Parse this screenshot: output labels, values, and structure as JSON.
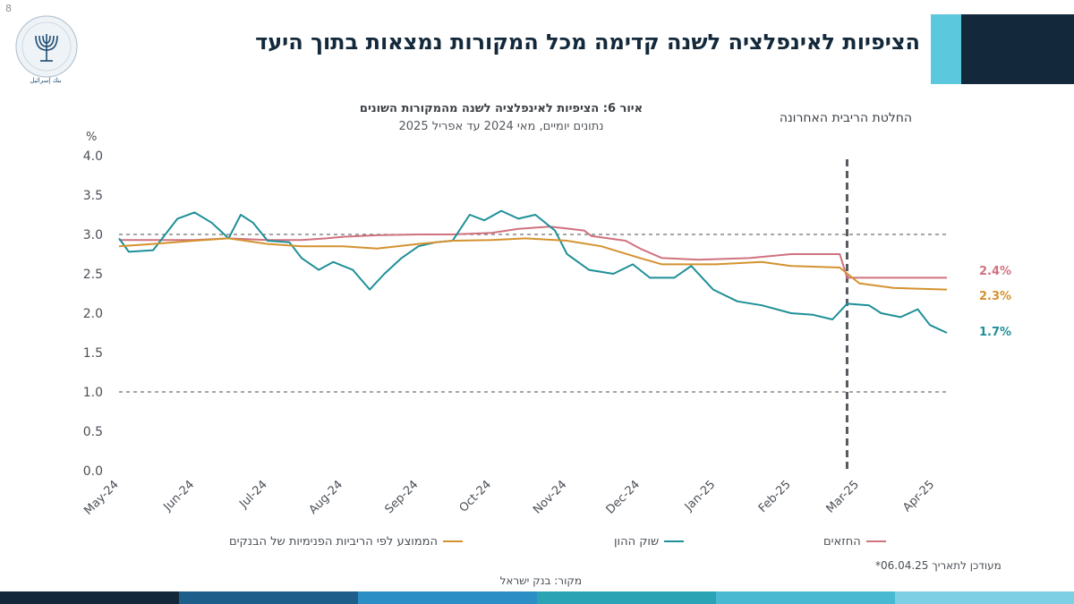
{
  "page_number": "8",
  "slide_title": "הציפיות לאינפלציה לשנה קדימה מכל המקורות נמצאות בתוך היעד",
  "colors": {
    "title_accent_light": "#5cc8dd",
    "title_accent_dark": "#13293b",
    "bottom_band": [
      "#13293b",
      "#1d5f8a",
      "#2b8fc6",
      "#2aa3b5",
      "#48b9d1",
      "#7dd0e3"
    ]
  },
  "logo": {
    "icon": "bank-of-israel-menorah-seal",
    "text": "בנק ישראל BANK OF ISRAEL بنك إسرائيل"
  },
  "chart_data": {
    "type": "line",
    "title": "איור 6: הציפיות לאינפלציה לשנה מהמקורות השונים",
    "subtitle": "נתונים יומיים, מאי 2024 עד אפריל 2025",
    "ylabel": "%",
    "xlabel": "",
    "ylim": [
      0,
      4
    ],
    "yticks": [
      0.0,
      0.5,
      1.0,
      1.5,
      2.0,
      2.5,
      3.0,
      3.5,
      4.0
    ],
    "ytick_labels": [
      "0.0",
      "0.5",
      "1.0",
      "1.5",
      "2.0",
      "2.5",
      "3.0",
      "3.5",
      "4.0"
    ],
    "xlim": [
      "2024-05-01",
      "2025-04-06"
    ],
    "xticks": [
      "2024-05-01",
      "2024-06-01",
      "2024-07-01",
      "2024-08-01",
      "2024-09-01",
      "2024-10-01",
      "2024-11-01",
      "2024-12-01",
      "2025-01-01",
      "2025-02-01",
      "2025-03-01",
      "2025-04-01"
    ],
    "xtick_labels": [
      "May-24",
      "Jun-24",
      "Jul-24",
      "Aug-24",
      "Sep-24",
      "Oct-24",
      "Nov-24",
      "Dec-24",
      "Jan-25",
      "Feb-25",
      "Mar-25",
      "Apr-25"
    ],
    "target_band": [
      1.0,
      3.0
    ],
    "event_line": {
      "x": "2025-02-24",
      "label": "החלטת הריבית האחרונה"
    },
    "grid": false,
    "legend_position": "bottom",
    "series": [
      {
        "name": "החזאים",
        "color": "#d0727f",
        "end_label": "2.4%",
        "points": [
          [
            "2024-05-01",
            2.93
          ],
          [
            "2024-05-15",
            2.93
          ],
          [
            "2024-06-01",
            2.93
          ],
          [
            "2024-06-15",
            2.95
          ],
          [
            "2024-07-01",
            2.93
          ],
          [
            "2024-07-15",
            2.93
          ],
          [
            "2024-07-25",
            2.95
          ],
          [
            "2024-08-01",
            2.97
          ],
          [
            "2024-08-15",
            2.99
          ],
          [
            "2024-09-01",
            3.0
          ],
          [
            "2024-09-15",
            3.0
          ],
          [
            "2024-10-01",
            3.02
          ],
          [
            "2024-10-12",
            3.07
          ],
          [
            "2024-10-25",
            3.1
          ],
          [
            "2024-11-08",
            3.05
          ],
          [
            "2024-11-11",
            2.98
          ],
          [
            "2024-11-25",
            2.92
          ],
          [
            "2024-12-01",
            2.82
          ],
          [
            "2024-12-10",
            2.7
          ],
          [
            "2024-12-25",
            2.68
          ],
          [
            "2025-01-15",
            2.7
          ],
          [
            "2025-02-01",
            2.75
          ],
          [
            "2025-02-21",
            2.75
          ],
          [
            "2025-02-24",
            2.45
          ],
          [
            "2025-03-10",
            2.45
          ],
          [
            "2025-03-25",
            2.45
          ],
          [
            "2025-04-06",
            2.45
          ]
        ]
      },
      {
        "name": "שוק ההון",
        "color": "#1e8f98",
        "end_label": "1.7%",
        "points": [
          [
            "2024-05-01",
            2.95
          ],
          [
            "2024-05-05",
            2.78
          ],
          [
            "2024-05-15",
            2.8
          ],
          [
            "2024-05-20",
            3.0
          ],
          [
            "2024-05-25",
            3.2
          ],
          [
            "2024-06-01",
            3.28
          ],
          [
            "2024-06-08",
            3.15
          ],
          [
            "2024-06-15",
            2.95
          ],
          [
            "2024-06-20",
            3.25
          ],
          [
            "2024-06-25",
            3.15
          ],
          [
            "2024-07-01",
            2.92
          ],
          [
            "2024-07-10",
            2.9
          ],
          [
            "2024-07-15",
            2.7
          ],
          [
            "2024-07-22",
            2.55
          ],
          [
            "2024-07-28",
            2.65
          ],
          [
            "2024-08-05",
            2.55
          ],
          [
            "2024-08-12",
            2.3
          ],
          [
            "2024-08-18",
            2.5
          ],
          [
            "2024-08-25",
            2.7
          ],
          [
            "2024-09-01",
            2.85
          ],
          [
            "2024-09-08",
            2.9
          ],
          [
            "2024-09-15",
            2.92
          ],
          [
            "2024-09-22",
            3.25
          ],
          [
            "2024-09-28",
            3.18
          ],
          [
            "2024-10-05",
            3.3
          ],
          [
            "2024-10-12",
            3.2
          ],
          [
            "2024-10-19",
            3.25
          ],
          [
            "2024-10-27",
            3.05
          ],
          [
            "2024-11-01",
            2.75
          ],
          [
            "2024-11-10",
            2.55
          ],
          [
            "2024-11-20",
            2.5
          ],
          [
            "2024-11-28",
            2.62
          ],
          [
            "2024-12-05",
            2.45
          ],
          [
            "2024-12-15",
            2.45
          ],
          [
            "2024-12-22",
            2.6
          ],
          [
            "2024-12-31",
            2.3
          ],
          [
            "2025-01-10",
            2.15
          ],
          [
            "2025-01-20",
            2.1
          ],
          [
            "2025-02-01",
            2.0
          ],
          [
            "2025-02-10",
            1.98
          ],
          [
            "2025-02-18",
            1.92
          ],
          [
            "2025-02-24",
            2.12
          ],
          [
            "2025-03-05",
            2.1
          ],
          [
            "2025-03-10",
            2.0
          ],
          [
            "2025-03-18",
            1.95
          ],
          [
            "2025-03-25",
            2.05
          ],
          [
            "2025-03-30",
            1.85
          ],
          [
            "2025-04-06",
            1.75
          ]
        ]
      },
      {
        "name": "הממוצע לפי הריביות הפנימיות של הבנקים",
        "color": "#d4922f",
        "end_label": "2.3%",
        "points": [
          [
            "2024-05-01",
            2.85
          ],
          [
            "2024-05-15",
            2.88
          ],
          [
            "2024-06-01",
            2.92
          ],
          [
            "2024-06-15",
            2.95
          ],
          [
            "2024-07-01",
            2.88
          ],
          [
            "2024-07-15",
            2.85
          ],
          [
            "2024-08-01",
            2.85
          ],
          [
            "2024-08-15",
            2.82
          ],
          [
            "2024-09-01",
            2.88
          ],
          [
            "2024-09-15",
            2.92
          ],
          [
            "2024-10-01",
            2.93
          ],
          [
            "2024-10-15",
            2.95
          ],
          [
            "2024-11-01",
            2.92
          ],
          [
            "2024-11-15",
            2.85
          ],
          [
            "2024-12-01",
            2.7
          ],
          [
            "2024-12-10",
            2.62
          ],
          [
            "2025-01-01",
            2.62
          ],
          [
            "2025-01-20",
            2.65
          ],
          [
            "2025-02-01",
            2.6
          ],
          [
            "2025-02-21",
            2.58
          ],
          [
            "2025-03-01",
            2.38
          ],
          [
            "2025-03-15",
            2.32
          ],
          [
            "2025-04-06",
            2.3
          ]
        ]
      }
    ]
  },
  "legend": [
    {
      "label": "החזאים",
      "color": "#d0727f"
    },
    {
      "label": "שוק ההון",
      "color": "#1e8f98"
    },
    {
      "label": "הממוצע לפי הריביות הפנימיות של הבנקים",
      "color": "#d4922f"
    }
  ],
  "footnote": "מעודכן לתאריך 06.04.25*",
  "source": "מקור: בנק ישראל"
}
